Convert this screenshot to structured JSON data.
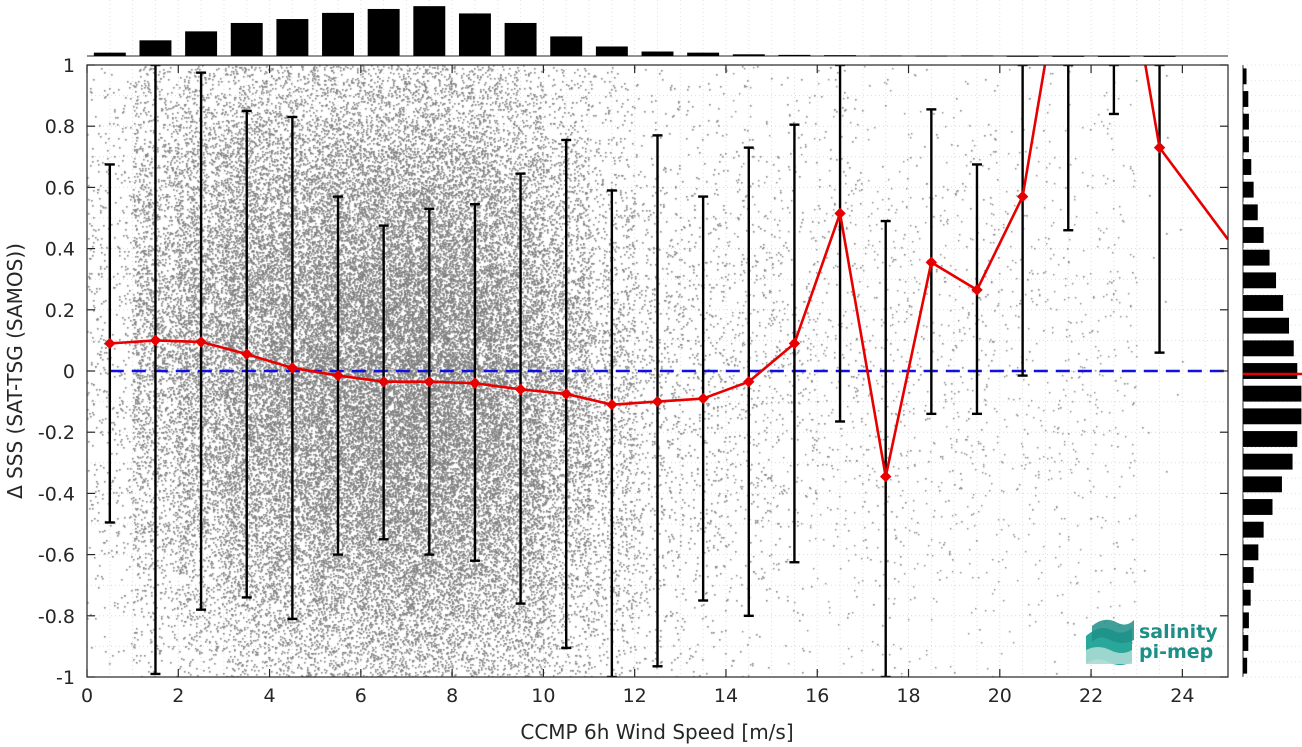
{
  "chart_data": {
    "type": "scatter",
    "xlabel": "CCMP 6h Wind Speed [m/s]",
    "ylabel": "Δ SSS (SAT-TSG (SAMOS))",
    "xlim": [
      0,
      25
    ],
    "ylim": [
      -1,
      1
    ],
    "xticks": [
      0,
      2,
      4,
      6,
      8,
      10,
      12,
      14,
      16,
      18,
      20,
      22,
      24
    ],
    "yticks": [
      -1,
      -0.8,
      -0.6,
      -0.4,
      -0.2,
      0,
      0.2,
      0.4,
      0.6,
      0.8,
      1
    ],
    "grid": true,
    "reference_line": {
      "y": 0,
      "style": "dashed",
      "color": "#1010e0"
    },
    "bin_centers": [
      0.5,
      1.5,
      2.5,
      3.5,
      4.5,
      5.5,
      6.5,
      7.5,
      8.5,
      9.5,
      10.5,
      11.5,
      12.5,
      13.5,
      14.5,
      15.5,
      16.5,
      17.5,
      18.5,
      19.5,
      20.5,
      21.5,
      22.5,
      23.5
    ],
    "median": [
      0.09,
      0.1,
      0.095,
      0.055,
      0.01,
      -0.015,
      -0.035,
      -0.035,
      -0.04,
      -0.06,
      -0.075,
      -0.11,
      -0.1,
      -0.09,
      -0.035,
      0.09,
      0.515,
      -0.345,
      0.355,
      0.265,
      0.57,
      1.45,
      1.6,
      0.73
    ],
    "err_upper": [
      0.675,
      1.0,
      0.975,
      0.85,
      0.83,
      0.57,
      0.475,
      0.53,
      0.545,
      0.645,
      0.755,
      0.59,
      0.77,
      0.57,
      0.73,
      0.805,
      1.0,
      0.49,
      0.855,
      0.675,
      1.0,
      1.0,
      1.0,
      1.0
    ],
    "err_lower": [
      -0.495,
      -0.99,
      -0.78,
      -0.74,
      -0.81,
      -0.6,
      -0.55,
      -0.6,
      -0.62,
      -0.76,
      -0.905,
      -1.0,
      -0.965,
      -0.75,
      -0.8,
      -0.625,
      -0.165,
      -1.0,
      -0.14,
      -0.14,
      -0.015,
      0.46,
      0.84,
      0.06
    ],
    "line_end": {
      "x": 25,
      "y": 0.43
    },
    "top_histogram": [
      0.06,
      0.28,
      0.44,
      0.59,
      0.66,
      0.77,
      0.84,
      0.89,
      0.76,
      0.59,
      0.35,
      0.17,
      0.08,
      0.06,
      0.03,
      0.02,
      0.015,
      0.01,
      0.008,
      0.01,
      0.004,
      0.003,
      0.002,
      0.002
    ],
    "right_histogram": [
      0.06,
      0.09,
      0.1,
      0.1,
      0.14,
      0.18,
      0.25,
      0.35,
      0.45,
      0.56,
      0.68,
      0.78,
      0.86,
      0.92,
      0.99,
      0.99,
      0.92,
      0.84,
      0.66,
      0.5,
      0.35,
      0.26,
      0.18,
      0.13,
      0.1,
      0.09,
      0.07
    ],
    "colors": {
      "scatter": "#7f7f7f",
      "median_line": "#e60000",
      "error_bar": "#000000",
      "histogram": "#000000",
      "reference_line": "#1010e0"
    }
  },
  "logo": {
    "line1": "salinity",
    "line2": "pi-mep"
  }
}
